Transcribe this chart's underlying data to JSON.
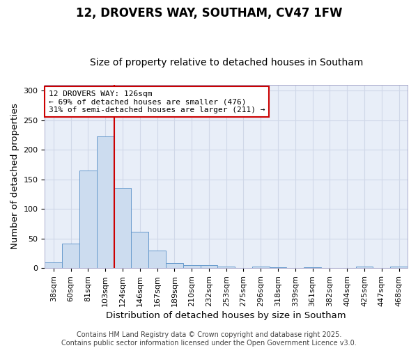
{
  "title1": "12, DROVERS WAY, SOUTHAM, CV47 1FW",
  "title2": "Size of property relative to detached houses in Southam",
  "xlabel": "Distribution of detached houses by size in Southam",
  "ylabel": "Number of detached properties",
  "categories": [
    "38sqm",
    "60sqm",
    "81sqm",
    "103sqm",
    "124sqm",
    "146sqm",
    "167sqm",
    "189sqm",
    "210sqm",
    "232sqm",
    "253sqm",
    "275sqm",
    "296sqm",
    "318sqm",
    "339sqm",
    "361sqm",
    "382sqm",
    "404sqm",
    "425sqm",
    "447sqm",
    "468sqm"
  ],
  "bar_values": [
    10,
    41,
    165,
    223,
    136,
    62,
    30,
    8,
    5,
    5,
    3,
    0,
    3,
    2,
    0,
    1,
    0,
    0,
    3,
    0,
    3
  ],
  "bar_color": "#ccdcef",
  "bar_edge_color": "#6699cc",
  "grid_color": "#d0d8e8",
  "background_color": "#e8eef8",
  "fig_background_color": "#ffffff",
  "vline_x_index": 4,
  "vline_color": "#cc0000",
  "annotation_line1": "12 DROVERS WAY: 126sqm",
  "annotation_line2": "← 69% of detached houses are smaller (476)",
  "annotation_line3": "31% of semi-detached houses are larger (211) →",
  "annotation_box_color": "#ffffff",
  "annotation_border_color": "#cc0000",
  "footer_text": "Contains HM Land Registry data © Crown copyright and database right 2025.\nContains public sector information licensed under the Open Government Licence v3.0.",
  "ylim": [
    0,
    310
  ],
  "yticks": [
    0,
    50,
    100,
    150,
    200,
    250,
    300
  ],
  "title1_fontsize": 12,
  "title2_fontsize": 10,
  "axis_label_fontsize": 9.5,
  "tick_fontsize": 8,
  "annotation_fontsize": 8,
  "footer_fontsize": 7
}
